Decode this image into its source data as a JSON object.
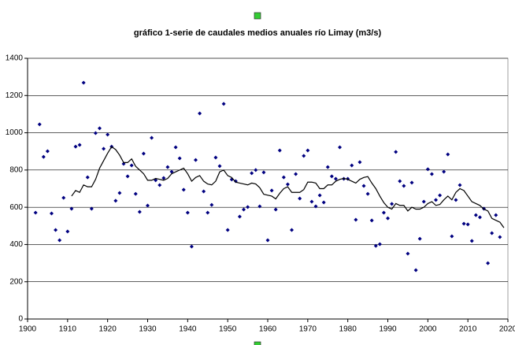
{
  "chart_data": {
    "type": "scatter",
    "title": "gráfico 1-serie de caudales medios anuales río Limay (m3/s)",
    "xlim": [
      1900,
      2020
    ],
    "xticks": [
      1900,
      1910,
      1920,
      1930,
      1940,
      1950,
      1960,
      1970,
      1980,
      1990,
      2000,
      2010,
      2020
    ],
    "ylim": [
      0,
      1400
    ],
    "yticks": [
      0,
      200,
      400,
      600,
      800,
      1000,
      1200,
      1400
    ],
    "grid": true,
    "series": [
      {
        "type": "scatter",
        "color": "#000080",
        "x": [
          1902,
          1903,
          1904,
          1905,
          1906,
          1907,
          1908,
          1909,
          1910,
          1911,
          1912,
          1913,
          1914,
          1915,
          1916,
          1917,
          1918,
          1919,
          1920,
          1921,
          1922,
          1923,
          1924,
          1925,
          1926,
          1927,
          1928,
          1929,
          1930,
          1931,
          1932,
          1933,
          1934,
          1935,
          1936,
          1937,
          1938,
          1939,
          1940,
          1941,
          1942,
          1943,
          1944,
          1945,
          1946,
          1947,
          1948,
          1949,
          1950,
          1951,
          1952,
          1953,
          1954,
          1955,
          1956,
          1957,
          1958,
          1959,
          1960,
          1961,
          1962,
          1963,
          1964,
          1965,
          1966,
          1967,
          1968,
          1969,
          1970,
          1971,
          1972,
          1973,
          1974,
          1975,
          1976,
          1977,
          1978,
          1979,
          1980,
          1981,
          1982,
          1983,
          1984,
          1985,
          1986,
          1987,
          1988,
          1989,
          1990,
          1991,
          1992,
          1993,
          1994,
          1995,
          1996,
          1997,
          1998,
          1999,
          2000,
          2001,
          2002,
          2003,
          2004,
          2005,
          2006,
          2007,
          2008,
          2009,
          2010,
          2011,
          2012,
          2013,
          2014,
          2015,
          2016,
          2017,
          2018
        ],
        "values": [
          571,
          1045,
          871,
          901,
          567,
          478,
          423,
          651,
          470,
          592,
          926,
          935,
          1269,
          761,
          592,
          998,
          1024,
          914,
          990,
          926,
          635,
          677,
          833,
          766,
          825,
          672,
          575,
          888,
          609,
          973,
          745,
          719,
          757,
          816,
          791,
          922,
          863,
          694,
          571,
          389,
          854,
          1104,
          685,
          571,
          613,
          867,
          821,
          1155,
          478,
          749,
          740,
          550,
          588,
          601,
          783,
          800,
          605,
          787,
          423,
          690,
          588,
          905,
          761,
          723,
          478,
          778,
          647,
          876,
          905,
          630,
          605,
          664,
          626,
          816,
          766,
          753,
          922,
          753,
          753,
          825,
          533,
          842,
          715,
          672,
          529,
          393,
          402,
          571,
          541,
          618,
          897,
          740,
          715,
          351,
          732,
          262,
          431,
          630,
          804,
          778,
          639,
          664,
          791,
          884,
          444,
          639,
          719,
          512,
          508,
          419,
          558,
          546,
          592,
          300,
          461,
          558,
          440
        ]
      },
      {
        "type": "line",
        "color": "#000000",
        "x": [
          1911,
          1912,
          1913,
          1914,
          1915,
          1916,
          1917,
          1918,
          1919,
          1920,
          1921,
          1922,
          1923,
          1924,
          1925,
          1926,
          1927,
          1928,
          1929,
          1930,
          1931,
          1932,
          1933,
          1934,
          1935,
          1936,
          1937,
          1938,
          1939,
          1940,
          1941,
          1942,
          1943,
          1944,
          1945,
          1946,
          1947,
          1948,
          1949,
          1950,
          1951,
          1952,
          1953,
          1954,
          1955,
          1956,
          1957,
          1958,
          1959,
          1960,
          1961,
          1962,
          1963,
          1964,
          1965,
          1966,
          1967,
          1968,
          1969,
          1970,
          1971,
          1972,
          1973,
          1974,
          1975,
          1976,
          1977,
          1978,
          1979,
          1980,
          1981,
          1982,
          1983,
          1984,
          1985,
          1986,
          1987,
          1988,
          1989,
          1990,
          1991,
          1992,
          1993,
          1994,
          1995,
          1996,
          1997,
          1998,
          1999,
          2000,
          2001,
          2002,
          2003,
          2004,
          2005,
          2006,
          2007,
          2008,
          2009,
          2010,
          2011,
          2012,
          2013,
          2014,
          2015,
          2016,
          2017,
          2018,
          2019
        ],
        "values": [
          660,
          690,
          680,
          720,
          710,
          710,
          750,
          810,
          850,
          890,
          925,
          910,
          880,
          840,
          840,
          860,
          820,
          800,
          780,
          745,
          745,
          755,
          750,
          745,
          755,
          780,
          790,
          800,
          810,
          780,
          740,
          760,
          770,
          740,
          725,
          720,
          740,
          790,
          800,
          770,
          760,
          735,
          730,
          725,
          720,
          730,
          725,
          705,
          670,
          665,
          660,
          645,
          675,
          700,
          710,
          680,
          680,
          680,
          695,
          735,
          735,
          730,
          700,
          700,
          720,
          720,
          740,
          750,
          755,
          750,
          740,
          730,
          750,
          760,
          765,
          730,
          700,
          660,
          625,
          600,
          590,
          620,
          610,
          610,
          580,
          600,
          590,
          590,
          600,
          620,
          630,
          610,
          615,
          640,
          660,
          640,
          680,
          700,
          690,
          660,
          630,
          620,
          610,
          590,
          580,
          540,
          530,
          520,
          490
        ]
      }
    ]
  }
}
